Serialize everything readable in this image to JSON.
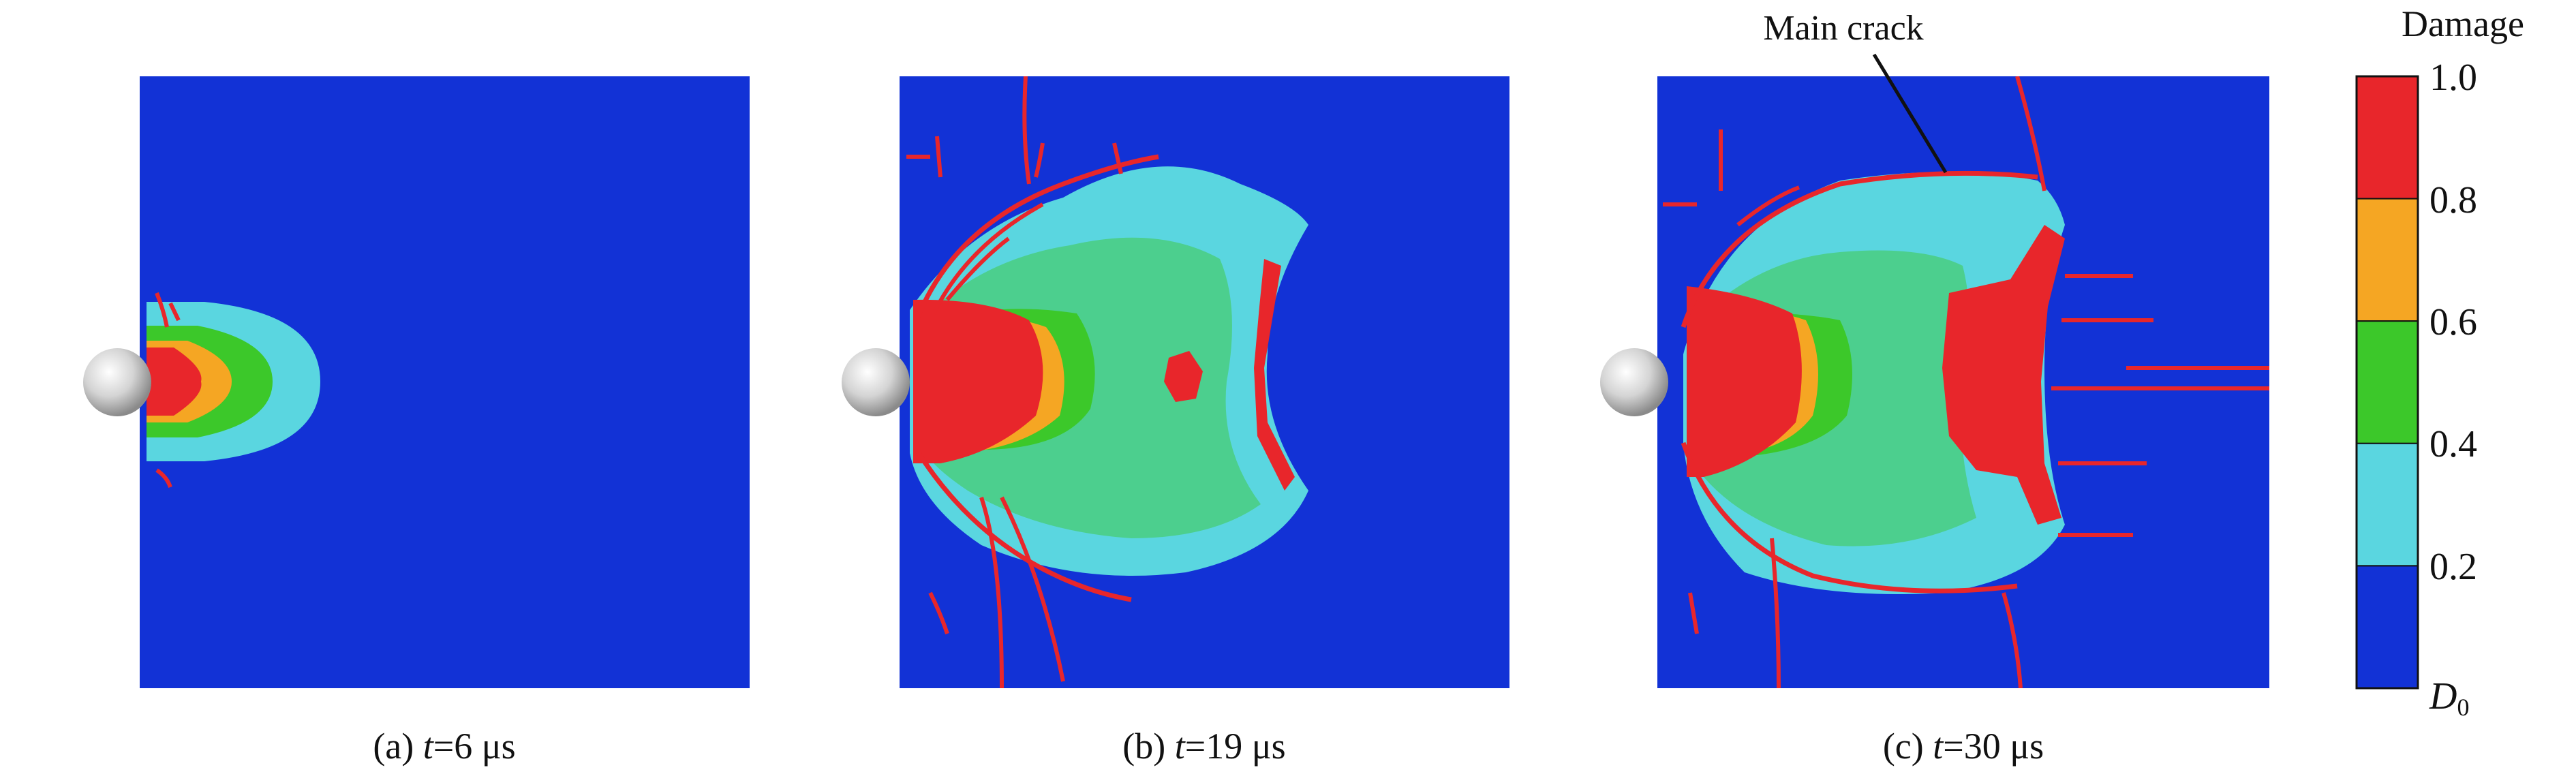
{
  "colorbar": {
    "title": "Damage",
    "ticks": [
      "1.0",
      "0.8",
      "0.6",
      "0.4",
      "0.2"
    ],
    "bottom_label_main": "D",
    "bottom_label_sub": "0",
    "colors": [
      "#e8262b",
      "#f5a623",
      "#3cc82a",
      "#5ad6e0",
      "#1232d6"
    ]
  },
  "panels": [
    {
      "letter": "(a) ",
      "t_symbol": "t",
      "t_value": "=6 μs"
    },
    {
      "letter": "(b) ",
      "t_symbol": "t",
      "t_value": "=19 μs"
    },
    {
      "letter": "(c) ",
      "t_symbol": "t",
      "t_value": "=30 μs"
    }
  ],
  "annotation": {
    "main_crack": "Main crack"
  },
  "colors": {
    "plate_background": "#1232d6",
    "damage_high": "#e8262b",
    "damage_mid_high": "#f5a623",
    "damage_mid": "#3cc82a",
    "damage_low": "#5ad6e0",
    "crack": "#e8262b",
    "projectile": "#d9d9d9"
  }
}
